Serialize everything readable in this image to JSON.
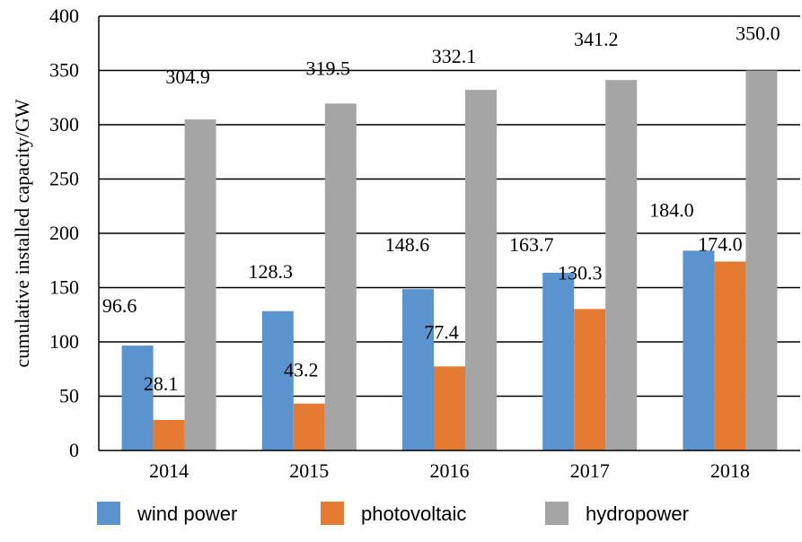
{
  "chart_data": {
    "type": "bar",
    "title": "",
    "xlabel": "",
    "ylabel": "cumulative installed capacity/GW",
    "categories": [
      "2014",
      "2015",
      "2016",
      "2017",
      "2018"
    ],
    "ylim": [
      0,
      400
    ],
    "yticks": [
      0,
      50,
      100,
      150,
      200,
      250,
      300,
      350,
      400
    ],
    "grid": true,
    "legend_position": "bottom",
    "series": [
      {
        "name": "wind power",
        "color": "#5b93cf",
        "values": [
          96.6,
          128.3,
          148.6,
          163.7,
          184.0
        ],
        "labels": [
          "96.6",
          "128.3",
          "148.6",
          "163.7",
          "184.0"
        ]
      },
      {
        "name": "photovoltaic",
        "color": "#e57b32",
        "values": [
          28.1,
          43.2,
          77.4,
          130.3,
          174.0
        ],
        "labels": [
          "28.1",
          "43.2",
          "77.4",
          "130.3",
          "174.0"
        ]
      },
      {
        "name": "hydropower",
        "color": "#a5a5a5",
        "values": [
          304.9,
          319.5,
          332.1,
          341.2,
          350.0
        ],
        "labels": [
          "304.9",
          "319.5",
          "332.1",
          "341.2",
          "350.0"
        ]
      }
    ]
  }
}
